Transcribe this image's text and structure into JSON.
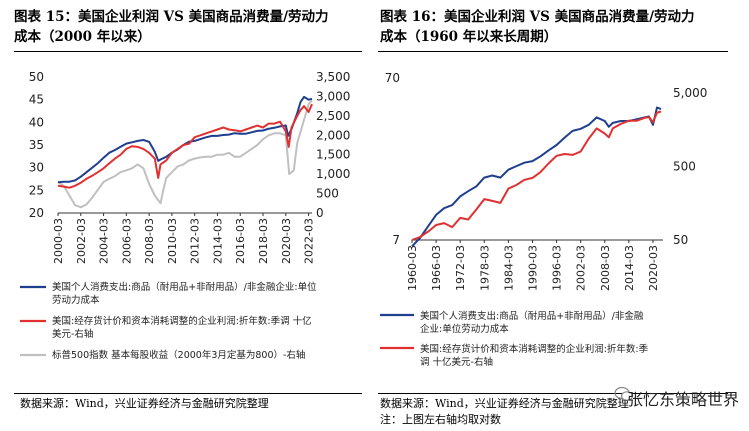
{
  "left": {
    "title_line1": "图表 15：美国企业利润 VS 美国商品消费量/劳动力",
    "title_line2": "成本（2000 年以来）",
    "source": "数据来源：Wind，兴业证券经济与金融研究院整理",
    "legend": [
      {
        "text_lines": [
          "美国个人消费支出:商品（耐用品+非耐用品）/非金融企业:单位",
          "劳动力成本"
        ],
        "color": "#1f3f8f"
      },
      {
        "text_lines": [
          "美国:经存货计价和资本消耗调整的企业利润:折年数:季调 十亿",
          "美元-右轴"
        ],
        "color": "#e03030"
      },
      {
        "text_lines": [
          "标普500指数 基本每股收益（2000年3月定基为800）-右轴"
        ],
        "color": "#c0c0c0"
      }
    ]
  },
  "right": {
    "title_line1": "图表 16：美国企业利润 VS 美国商品消费量/劳动力",
    "title_line2": "成本（1960 年以来长周期）",
    "source_line1": "数据来源：Wind，兴业证券经济与金融研究院整理",
    "source_line2": "注：上图左右轴均取对数",
    "legend": [
      {
        "text_lines": [
          "美国个人消费支出:商品（耐用品+非耐用品）/非金融",
          "企业:单位劳动力成本"
        ],
        "color": "#1f3f8f"
      },
      {
        "text_lines": [
          "美国:经存货计价和资本消耗调整的企业利润:折年数:季",
          "调 十亿美元-右轴"
        ],
        "color": "#e03030"
      }
    ]
  },
  "watermark": "张忆东策略世界",
  "chart_data": [
    {
      "type": "line",
      "x_labels": [
        "2000-03",
        "2002-03",
        "2004-03",
        "2006-03",
        "2008-03",
        "2010-03",
        "2012-03",
        "2014-03",
        "2016-03",
        "2018-03",
        "2020-03",
        "2022-03"
      ],
      "left_axis": {
        "ylim": [
          20,
          50
        ],
        "ticks": [
          20,
          25,
          30,
          35,
          40,
          45,
          50
        ]
      },
      "right_axis": {
        "ylim": [
          0,
          3500
        ],
        "ticks": [
          0,
          500,
          1000,
          1500,
          2000,
          2500,
          3000,
          3500
        ]
      },
      "series": [
        {
          "axis": "left",
          "color": "#1f3f8f",
          "x": [
            2000,
            2000.5,
            2001,
            2001.5,
            2002,
            2002.5,
            2003,
            2003.5,
            2004,
            2004.5,
            2005,
            2005.5,
            2006,
            2006.5,
            2007,
            2007.5,
            2008,
            2008.5,
            2008.8,
            2009,
            2009.5,
            2010,
            2010.5,
            2011,
            2011.5,
            2012,
            2012.5,
            2013,
            2013.5,
            2014,
            2014.5,
            2015,
            2015.5,
            2016,
            2016.5,
            2017,
            2017.5,
            2018,
            2018.5,
            2019,
            2019.5,
            2020,
            2020.2,
            2020.5,
            2021,
            2021.3,
            2021.6,
            2022,
            2022.3
          ],
          "y": [
            26.8,
            26.9,
            26.9,
            27.2,
            28.0,
            29.0,
            30.0,
            31.0,
            32.2,
            33.3,
            33.9,
            34.6,
            35.3,
            35.6,
            35.9,
            36.1,
            35.7,
            33.5,
            31.5,
            31.8,
            32.4,
            33.3,
            34.0,
            35.0,
            35.7,
            35.9,
            36.3,
            36.7,
            37.0,
            37.0,
            37.2,
            37.3,
            37.6,
            37.5,
            37.5,
            37.8,
            38.1,
            38.2,
            38.6,
            38.8,
            39.1,
            39.3,
            37.0,
            38.5,
            42.0,
            44.5,
            45.6,
            45.0,
            45.2
          ]
        },
        {
          "axis": "right",
          "color": "#e03030",
          "x": [
            2000,
            2000.5,
            2001,
            2001.5,
            2002,
            2002.5,
            2003,
            2003.5,
            2004,
            2004.5,
            2005,
            2005.5,
            2006,
            2006.5,
            2007,
            2007.5,
            2008,
            2008.5,
            2008.8,
            2009,
            2009.5,
            2010,
            2010.5,
            2011,
            2011.5,
            2012,
            2012.5,
            2013,
            2013.5,
            2014,
            2014.5,
            2015,
            2015.5,
            2016,
            2016.5,
            2017,
            2017.5,
            2018,
            2018.5,
            2019,
            2019.5,
            2020,
            2020.25,
            2020.5,
            2021,
            2021.3,
            2021.6,
            2022,
            2022.3
          ],
          "y": [
            700,
            680,
            650,
            700,
            780,
            880,
            960,
            1050,
            1150,
            1280,
            1400,
            1500,
            1650,
            1720,
            1700,
            1650,
            1550,
            1400,
            900,
            1250,
            1350,
            1550,
            1650,
            1750,
            1780,
            1950,
            2000,
            2050,
            2100,
            2150,
            2200,
            2150,
            2130,
            2100,
            2150,
            2200,
            2250,
            2200,
            2300,
            2300,
            2350,
            2100,
            1700,
            2200,
            2500,
            2650,
            2750,
            2600,
            2800
          ]
        },
        {
          "axis": "right",
          "color": "#c0c0c0",
          "x": [
            2000,
            2000.5,
            2001,
            2001.5,
            2002,
            2002.5,
            2003,
            2003.5,
            2004,
            2004.5,
            2005,
            2005.5,
            2006,
            2006.5,
            2007,
            2007.5,
            2008,
            2008.5,
            2009,
            2009.25,
            2009.5,
            2010,
            2010.5,
            2011,
            2011.5,
            2012,
            2012.5,
            2013,
            2013.5,
            2014,
            2014.5,
            2015,
            2015.5,
            2016,
            2016.5,
            2017,
            2017.5,
            2018,
            2018.5,
            2019,
            2019.5,
            2020,
            2020.3,
            2020.7,
            2021,
            2021.5,
            2022,
            2022.3
          ],
          "y": [
            800,
            700,
            450,
            200,
            150,
            220,
            400,
            600,
            800,
            880,
            950,
            1050,
            1100,
            1150,
            1250,
            1150,
            750,
            450,
            250,
            600,
            900,
            1050,
            1200,
            1250,
            1350,
            1400,
            1430,
            1450,
            1450,
            1500,
            1500,
            1550,
            1450,
            1450,
            1550,
            1650,
            1750,
            1900,
            2000,
            2050,
            2050,
            2000,
            1000,
            1100,
            1800,
            2300,
            2800,
            2900
          ]
        }
      ]
    },
    {
      "type": "line",
      "x_labels": [
        "1960-03",
        "1966-03",
        "1972-03",
        "1978-03",
        "1984-03",
        "1990-03",
        "1996-03",
        "2002-03",
        "2008-03",
        "2014-03",
        "2020-03"
      ],
      "left_axis": {
        "scale": "log",
        "ticks": [
          7,
          70
        ]
      },
      "right_axis": {
        "scale": "log",
        "ticks": [
          50,
          500,
          5000
        ]
      },
      "series": [
        {
          "axis": "left",
          "color": "#1f3f8f",
          "x": [
            1960,
            1962,
            1964,
            1966,
            1968,
            1970,
            1972,
            1974,
            1976,
            1978,
            1980,
            1982,
            1984,
            1986,
            1988,
            1990,
            1992,
            1994,
            1996,
            1998,
            2000,
            2002,
            2004,
            2006,
            2008,
            2009,
            2010,
            2012,
            2014,
            2016,
            2018,
            2019,
            2020,
            2021,
            2022
          ],
          "y": [
            6.4,
            7.2,
            8.5,
            10,
            11,
            11.5,
            13,
            14,
            15,
            17,
            17.5,
            17,
            19,
            20,
            21,
            21.5,
            23,
            25,
            27,
            30,
            33,
            34,
            36,
            40,
            38,
            35,
            37,
            38,
            38,
            39,
            40,
            40.5,
            36,
            46,
            45
          ]
        },
        {
          "axis": "right",
          "color": "#e03030",
          "x": [
            1960,
            1962,
            1964,
            1966,
            1968,
            1970,
            1972,
            1974,
            1976,
            1978,
            1980,
            1982,
            1984,
            1986,
            1988,
            1990,
            1992,
            1994,
            1996,
            1998,
            2000,
            2002,
            2004,
            2006,
            2008,
            2009,
            2010,
            2012,
            2014,
            2016,
            2018,
            2019,
            2020,
            2021,
            2022
          ],
          "y": [
            50,
            55,
            65,
            80,
            85,
            75,
            100,
            95,
            130,
            180,
            170,
            160,
            250,
            280,
            330,
            350,
            420,
            550,
            700,
            740,
            720,
            800,
            1200,
            1650,
            1400,
            1250,
            1650,
            1900,
            2100,
            2100,
            2300,
            2350,
            2000,
            2700,
            2800
          ]
        }
      ]
    }
  ]
}
